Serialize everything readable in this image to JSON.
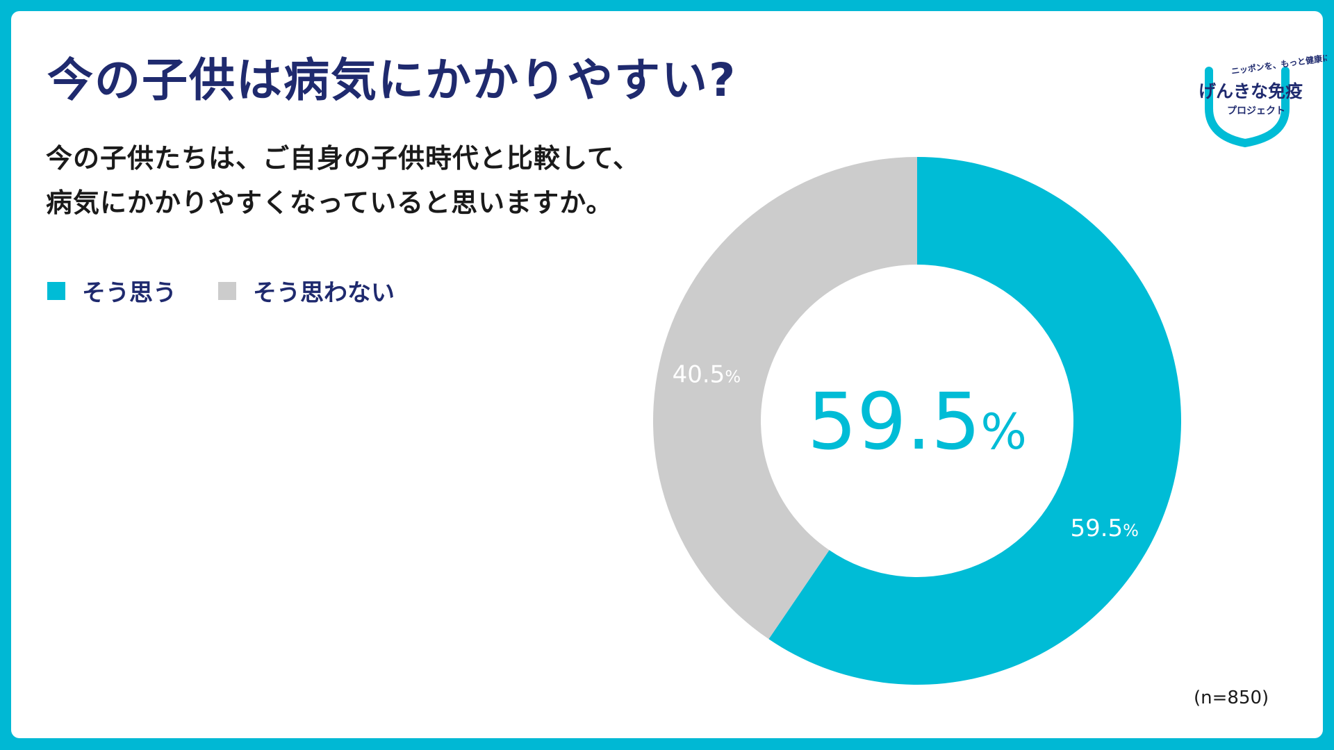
{
  "title": "今の子供は病気にかかりやすい?",
  "question": {
    "line1": "今の子供たちは、ご自身の子供時代と比較して、",
    "line2": "病気にかかりやすくなっていると思いますか。"
  },
  "legend": [
    {
      "label": "そう思う",
      "color": "#00bcd6"
    },
    {
      "label": "そう思わない",
      "color": "#cccccc"
    }
  ],
  "note": "(n=850)",
  "logo": {
    "tagline": "ニッポンを、もっと健康に。",
    "name": "げんきな免疫",
    "sub": "プロジェクト"
  },
  "chart_data": {
    "type": "pie",
    "donut": true,
    "center_label": "59.5%",
    "categories": [
      "そう思う",
      "そう思わない"
    ],
    "values": [
      59.5,
      40.5
    ],
    "value_labels": [
      "59.5%",
      "40.5%"
    ],
    "colors": [
      "#00bcd6",
      "#cccccc"
    ]
  }
}
